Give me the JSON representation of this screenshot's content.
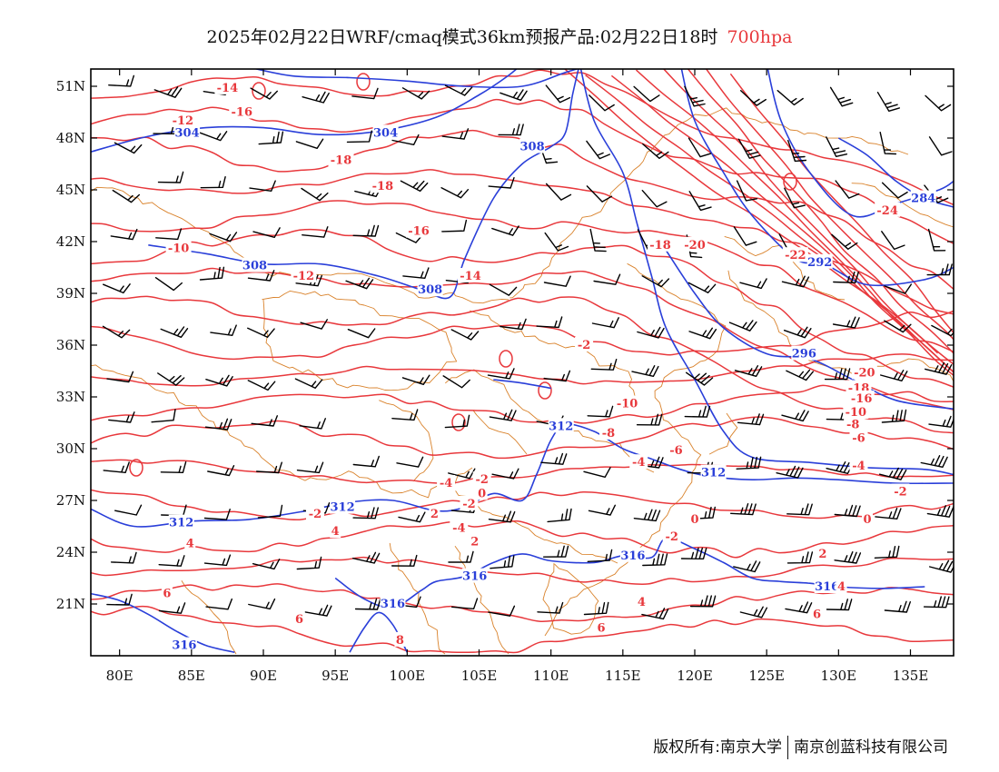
{
  "title": {
    "text": "2025年02月22日WRF/cmaq模式36km预报产品:02月22日18时",
    "level": "700hpa"
  },
  "footer": {
    "left": "版权所有:南京大学",
    "right": "南京创蓝科技有限公司"
  },
  "map": {
    "lon_range": [
      78,
      138
    ],
    "lat_range": [
      18,
      52
    ],
    "lon_ticks": [
      "80E",
      "85E",
      "90E",
      "95E",
      "100E",
      "105E",
      "110E",
      "115E",
      "120E",
      "125E",
      "130E",
      "135E"
    ],
    "lat_ticks": [
      "51N",
      "48N",
      "45N",
      "42N",
      "39N",
      "36N",
      "33N",
      "30N",
      "27N",
      "24N",
      "21N"
    ],
    "colors": {
      "height_contour": "#2a3fd9",
      "temperature_contour": "#e8383c",
      "boundary": "#d9822b",
      "wind_barb": "#000000"
    },
    "height_labels": [
      {
        "text": "304",
        "lon": 84.7,
        "lat": 48.3
      },
      {
        "text": "304",
        "lon": 98.5,
        "lat": 48.3
      },
      {
        "text": "308",
        "lon": 108.7,
        "lat": 47.5
      },
      {
        "text": "308",
        "lon": 89.4,
        "lat": 40.6
      },
      {
        "text": "308",
        "lon": 101.6,
        "lat": 39.2
      },
      {
        "text": "292",
        "lon": 128.7,
        "lat": 40.8
      },
      {
        "text": "284",
        "lon": 135.9,
        "lat": 44.5
      },
      {
        "text": "296",
        "lon": 127.6,
        "lat": 35.5
      },
      {
        "text": "312",
        "lon": 110.7,
        "lat": 31.3
      },
      {
        "text": "312",
        "lon": 121.3,
        "lat": 28.6
      },
      {
        "text": "312",
        "lon": 84.3,
        "lat": 25.7
      },
      {
        "text": "312",
        "lon": 95.5,
        "lat": 26.6
      },
      {
        "text": "316",
        "lon": 104.7,
        "lat": 22.6
      },
      {
        "text": "316",
        "lon": 115.7,
        "lat": 23.8
      },
      {
        "text": "316",
        "lon": 99.0,
        "lat": 21.0
      },
      {
        "text": "316",
        "lon": 84.5,
        "lat": 18.6
      },
      {
        "text": "316",
        "lon": 129.2,
        "lat": 22.0
      }
    ],
    "temp_labels": [
      {
        "text": "-14",
        "lon": 87.5,
        "lat": 50.9
      },
      {
        "text": "-16",
        "lon": 88.5,
        "lat": 49.5
      },
      {
        "text": "-12",
        "lon": 84.4,
        "lat": 49.0
      },
      {
        "text": "-18",
        "lon": 95.4,
        "lat": 46.7
      },
      {
        "text": "-18",
        "lon": 98.3,
        "lat": 45.2
      },
      {
        "text": "-16",
        "lon": 100.8,
        "lat": 42.6
      },
      {
        "text": "-14",
        "lon": 104.4,
        "lat": 40.0
      },
      {
        "text": "-12",
        "lon": 92.8,
        "lat": 40.0
      },
      {
        "text": "-10",
        "lon": 84.1,
        "lat": 41.6
      },
      {
        "text": "-18",
        "lon": 117.6,
        "lat": 41.8
      },
      {
        "text": "-20",
        "lon": 120.0,
        "lat": 41.8
      },
      {
        "text": "-22",
        "lon": 127.0,
        "lat": 41.2
      },
      {
        "text": "-24",
        "lon": 133.4,
        "lat": 43.8
      },
      {
        "text": "-20",
        "lon": 131.8,
        "lat": 34.4
      },
      {
        "text": "-18",
        "lon": 131.4,
        "lat": 33.5
      },
      {
        "text": "-16",
        "lon": 131.6,
        "lat": 32.9
      },
      {
        "text": "-10",
        "lon": 131.2,
        "lat": 32.1
      },
      {
        "text": "-8",
        "lon": 131.0,
        "lat": 31.4
      },
      {
        "text": "-6",
        "lon": 131.4,
        "lat": 30.6
      },
      {
        "text": "-4",
        "lon": 131.4,
        "lat": 29.0
      },
      {
        "text": "-2",
        "lon": 134.3,
        "lat": 27.5
      },
      {
        "text": "0",
        "lon": 132.0,
        "lat": 25.9
      },
      {
        "text": "-2",
        "lon": 112.3,
        "lat": 36.0
      },
      {
        "text": "-10",
        "lon": 115.3,
        "lat": 32.6
      },
      {
        "text": "-8",
        "lon": 114.0,
        "lat": 30.9
      },
      {
        "text": "-6",
        "lon": 118.7,
        "lat": 29.9
      },
      {
        "text": "-4",
        "lon": 116.1,
        "lat": 29.2
      },
      {
        "text": "-2",
        "lon": 105.2,
        "lat": 28.2
      },
      {
        "text": "-4",
        "lon": 102.7,
        "lat": 28.0
      },
      {
        "text": "0",
        "lon": 105.2,
        "lat": 27.4
      },
      {
        "text": "-2",
        "lon": 93.6,
        "lat": 26.2
      },
      {
        "text": "-2",
        "lon": 104.3,
        "lat": 26.8
      },
      {
        "text": "2",
        "lon": 101.9,
        "lat": 26.2
      },
      {
        "text": "-4",
        "lon": 103.6,
        "lat": 25.4
      },
      {
        "text": "2",
        "lon": 104.7,
        "lat": 24.6
      },
      {
        "text": "4",
        "lon": 95.0,
        "lat": 25.2
      },
      {
        "text": "4",
        "lon": 84.9,
        "lat": 24.5
      },
      {
        "text": "-2",
        "lon": 118.4,
        "lat": 24.9
      },
      {
        "text": "0",
        "lon": 120.0,
        "lat": 25.9
      },
      {
        "text": "2",
        "lon": 128.9,
        "lat": 23.9
      },
      {
        "text": "4",
        "lon": 130.2,
        "lat": 22.0
      },
      {
        "text": "4",
        "lon": 116.3,
        "lat": 21.1
      },
      {
        "text": "6",
        "lon": 83.3,
        "lat": 21.6
      },
      {
        "text": "6",
        "lon": 113.5,
        "lat": 19.6
      },
      {
        "text": "6",
        "lon": 128.5,
        "lat": 20.4
      },
      {
        "text": "8",
        "lon": 99.5,
        "lat": 18.9
      },
      {
        "text": "6",
        "lon": 92.5,
        "lat": 20.1
      }
    ]
  }
}
